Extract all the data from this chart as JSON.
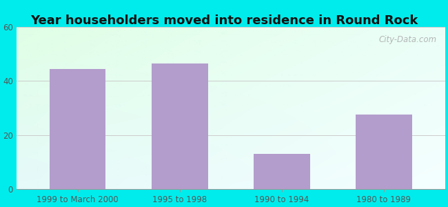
{
  "title": "Year householders moved into residence in Round Rock",
  "categories": [
    "1999 to March 2000",
    "1995 to 1998",
    "1990 to 1994",
    "1980 to 1989"
  ],
  "values": [
    44.5,
    46.5,
    13.0,
    27.5
  ],
  "bar_color": "#b39dcc",
  "ylim": [
    0,
    60
  ],
  "yticks": [
    0,
    20,
    40,
    60
  ],
  "background_outer": "#00ecec",
  "title_fontsize": 13,
  "tick_fontsize": 8.5,
  "watermark": "City-Data.com"
}
